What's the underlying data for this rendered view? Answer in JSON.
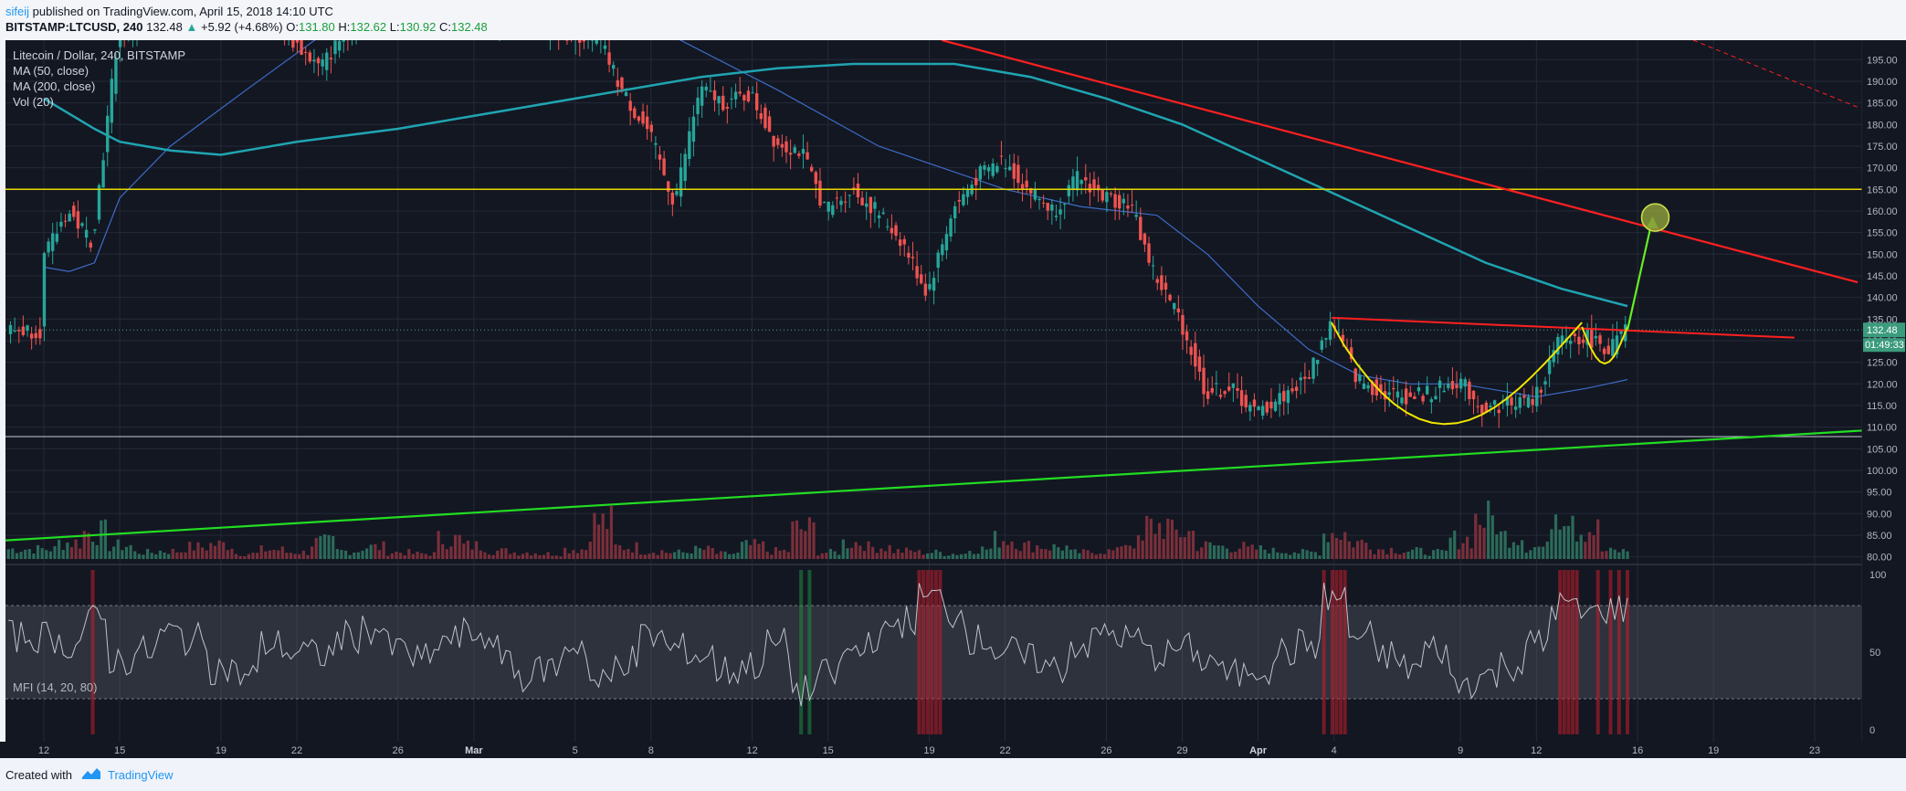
{
  "header": {
    "author": "sifeij",
    "published": " published on TradingView.com, April 15, 2018 14:10 UTC",
    "symbol": "BITSTAMP:LTCUSD, 240",
    "last": "132.48",
    "change_arrow": "▲",
    "change": "+5.92 (+4.68%)",
    "o_label": "O:",
    "o_value": "131.80",
    "h_label": "H:",
    "h_value": "132.62",
    "l_label": "L:",
    "l_value": "130.92",
    "c_label": "C:",
    "c_value": "132.48"
  },
  "legend": {
    "title": "Litecoin / Dollar, 240, BITSTAMP",
    "ma50": "MA (50, close)",
    "ma200": "MA (200, close)",
    "vol": "Vol (20)"
  },
  "mfi_label": "MFI (14, 20, 80)",
  "footer": {
    "created": "Created with",
    "brand": "TradingView"
  },
  "chart_data": {
    "type": "candlestick",
    "symbol": "LTCUSD",
    "timeframe": "240",
    "ylim": [
      79.5,
      199.5
    ],
    "y_ticks": [
      "80.00",
      "85.00",
      "90.00",
      "95.00",
      "100.00",
      "105.00",
      "110.00",
      "115.00",
      "120.00",
      "125.00",
      "130.00",
      "135.00",
      "140.00",
      "145.00",
      "150.00",
      "155.00",
      "160.00",
      "165.00",
      "170.00",
      "175.00",
      "180.00",
      "185.00",
      "190.00",
      "195.00"
    ],
    "x_ticks": [
      {
        "d": 0,
        "label": "12"
      },
      {
        "d": 3,
        "label": "15"
      },
      {
        "d": 7,
        "label": "19"
      },
      {
        "d": 10,
        "label": "22"
      },
      {
        "d": 14,
        "label": "26"
      },
      {
        "d": 17,
        "label": "Mar"
      },
      {
        "d": 21,
        "label": "5"
      },
      {
        "d": 24,
        "label": "8"
      },
      {
        "d": 28,
        "label": "12"
      },
      {
        "d": 31,
        "label": "15"
      },
      {
        "d": 35,
        "label": "19"
      },
      {
        "d": 38,
        "label": "22"
      },
      {
        "d": 42,
        "label": "26"
      },
      {
        "d": 45,
        "label": "29"
      },
      {
        "d": 48,
        "label": "Apr"
      },
      {
        "d": 51,
        "label": "4"
      },
      {
        "d": 56,
        "label": "9"
      },
      {
        "d": 59,
        "label": "12"
      },
      {
        "d": 63,
        "label": "16"
      },
      {
        "d": 66,
        "label": "19"
      },
      {
        "d": 70,
        "label": "23"
      }
    ],
    "price_path": [
      [
        0,
        148
      ],
      [
        1,
        160
      ],
      [
        2,
        153
      ],
      [
        3,
        200
      ],
      [
        5,
        210
      ],
      [
        9,
        205
      ],
      [
        11,
        193
      ],
      [
        13,
        210
      ],
      [
        22,
        200
      ],
      [
        23,
        187
      ],
      [
        24,
        178
      ],
      [
        25,
        162
      ],
      [
        26,
        188
      ],
      [
        27,
        185
      ],
      [
        28,
        187
      ],
      [
        29,
        176
      ],
      [
        30,
        174
      ],
      [
        31,
        160
      ],
      [
        32,
        165
      ],
      [
        33,
        160
      ],
      [
        34,
        153
      ],
      [
        35,
        141
      ],
      [
        36,
        160
      ],
      [
        37,
        168
      ],
      [
        38,
        172
      ],
      [
        39,
        165
      ],
      [
        40,
        160
      ],
      [
        41,
        168
      ],
      [
        42,
        163
      ],
      [
        43,
        162
      ],
      [
        44,
        145
      ],
      [
        45,
        135
      ],
      [
        46,
        118
      ],
      [
        47,
        119
      ],
      [
        48,
        113
      ],
      [
        49,
        117
      ],
      [
        50,
        121
      ],
      [
        51,
        135
      ],
      [
        52,
        121
      ],
      [
        53,
        118
      ],
      [
        54,
        117
      ],
      [
        55,
        118
      ],
      [
        56,
        121
      ],
      [
        57,
        114
      ],
      [
        58,
        116
      ],
      [
        59,
        116
      ],
      [
        60,
        130
      ],
      [
        61,
        131
      ],
      [
        62,
        128
      ],
      [
        62.6,
        132.48
      ]
    ],
    "ma50_path": [
      [
        0,
        147
      ],
      [
        1,
        146
      ],
      [
        2,
        148
      ],
      [
        3,
        163
      ],
      [
        5,
        175
      ],
      [
        8,
        188
      ],
      [
        12,
        205
      ],
      [
        20,
        220
      ],
      [
        25,
        200
      ],
      [
        29,
        188
      ],
      [
        33,
        175
      ],
      [
        38,
        165
      ],
      [
        41,
        161
      ],
      [
        44,
        159
      ],
      [
        46,
        150
      ],
      [
        48,
        138
      ],
      [
        50,
        128
      ],
      [
        52,
        122
      ],
      [
        54,
        120
      ],
      [
        56,
        120
      ],
      [
        58,
        118
      ],
      [
        59,
        117
      ],
      [
        61,
        119
      ],
      [
        62.6,
        121
      ]
    ],
    "ma200_path": [
      [
        0,
        186
      ],
      [
        2,
        179
      ],
      [
        3,
        176
      ],
      [
        5,
        174
      ],
      [
        7,
        173
      ],
      [
        10,
        176
      ],
      [
        14,
        179
      ],
      [
        18,
        183
      ],
      [
        22,
        187
      ],
      [
        26,
        191
      ],
      [
        29,
        193
      ],
      [
        32,
        194
      ],
      [
        36,
        194
      ],
      [
        39,
        191
      ],
      [
        42,
        186
      ],
      [
        45,
        180
      ],
      [
        48,
        172
      ],
      [
        51,
        164
      ],
      [
        54,
        156
      ],
      [
        57,
        148
      ],
      [
        60,
        142
      ],
      [
        62.6,
        138
      ]
    ],
    "volume": [
      15,
      25,
      40,
      20,
      10,
      12,
      18,
      22,
      8,
      14,
      10,
      25,
      12,
      18,
      10,
      8,
      30,
      20,
      12,
      10,
      8,
      15,
      55,
      18,
      12,
      10,
      14,
      8,
      20,
      12,
      45,
      10,
      25,
      18,
      12,
      10,
      8,
      15,
      30,
      20,
      18,
      10,
      12,
      25,
      50,
      40,
      20,
      18,
      15,
      12,
      10,
      40,
      25,
      15,
      12,
      10,
      30,
      60,
      35,
      18,
      80,
      45,
      12
    ],
    "mfi": [
      60,
      55,
      70,
      45,
      50,
      62,
      58,
      40,
      35,
      55,
      50,
      48,
      60,
      65,
      52,
      45,
      58,
      62,
      50,
      35,
      40,
      55,
      30,
      45,
      60,
      52,
      48,
      38,
      42,
      55,
      25,
      35,
      50,
      60,
      70,
      85,
      75,
      58,
      50,
      45,
      40,
      55,
      62,
      58,
      48,
      52,
      45,
      35,
      40,
      50,
      55,
      85,
      60,
      48,
      40,
      52,
      30,
      35,
      42,
      55,
      80,
      75,
      78
    ],
    "mfi_band": [
      20,
      80
    ],
    "mfi_ylim": [
      0,
      100
    ],
    "mfi_ticks": [
      "0",
      "50",
      "100"
    ],
    "current_price": 132.48,
    "countdown": "01:49:33",
    "annotations": {
      "horizontal_yellow": 165,
      "support_line": 107.8,
      "target_price": 158.5
    }
  },
  "colors": {
    "background": "#131722",
    "grid": "#242a38",
    "up": "#26a69a",
    "down": "#ef5350",
    "ma50": "#3d6bc7",
    "ma200": "#1fa5b1",
    "red_line": "#ff2020",
    "green_line": "#22dd22",
    "yellow": "#f2e600"
  }
}
